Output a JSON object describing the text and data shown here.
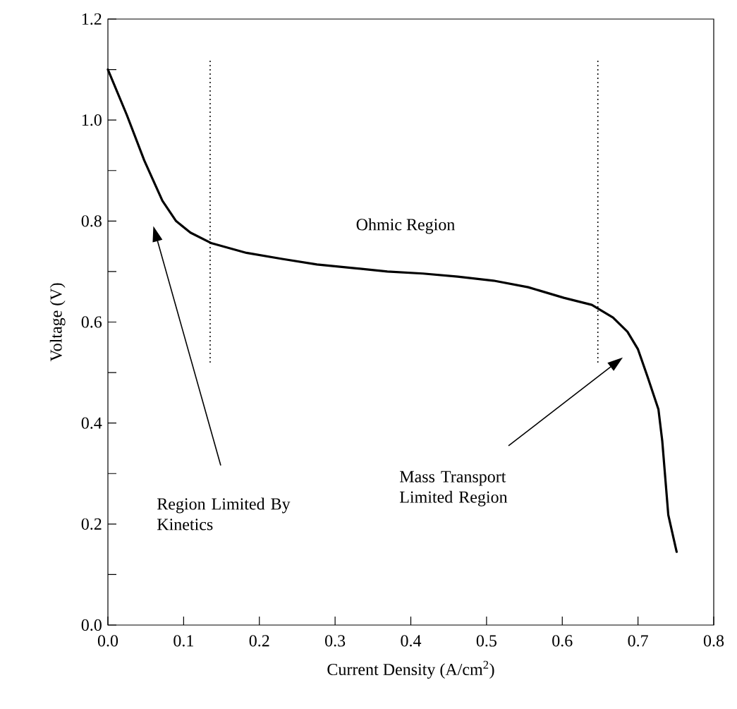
{
  "chart_data": {
    "type": "line",
    "xlabel": "Current Density (A/cm$^{2}$)",
    "ylabel": "Voltage (V)",
    "xlim": [
      0,
      0.8
    ],
    "ylim": [
      0,
      1.2
    ],
    "xticks": [
      {
        "value": 0,
        "label": "0.0"
      },
      {
        "value": 0.1,
        "label": "0.1"
      },
      {
        "value": 0.2,
        "label": "0.2"
      },
      {
        "value": 0.3,
        "label": "0.3"
      },
      {
        "value": 0.4,
        "label": "0.4"
      },
      {
        "value": 0.5,
        "label": "0.5"
      },
      {
        "value": 0.6,
        "label": "0.6"
      },
      {
        "value": 0.7,
        "label": "0.7"
      },
      {
        "value": 0.8,
        "label": "0.8"
      }
    ],
    "yticks": [
      {
        "value": 0,
        "label": "0.0"
      },
      {
        "value": 0.2,
        "label": "0.2"
      },
      {
        "value": 0.4,
        "label": "0.4"
      },
      {
        "value": 0.6,
        "label": "0.6"
      },
      {
        "value": 0.8,
        "label": "0.8"
      },
      {
        "value": 1.0,
        "label": "1.0"
      },
      {
        "value": 1.2,
        "label": "1.2"
      }
    ],
    "series": [
      {
        "color": "#000000",
        "x": [
          0,
          0.025,
          0.048,
          0.072,
          0.09,
          0.109,
          0.137,
          0.183,
          0.23,
          0.276,
          0.323,
          0.369,
          0.416,
          0.462,
          0.509,
          0.555,
          0.602,
          0.639,
          0.667,
          0.686,
          0.7,
          0.713,
          0.727,
          0.732,
          0.74,
          0.751
        ],
        "values": [
          1.1,
          1.01,
          0.92,
          0.84,
          0.8,
          0.777,
          0.756,
          0.737,
          0.725,
          0.714,
          0.707,
          0.7,
          0.696,
          0.69,
          0.682,
          0.669,
          0.648,
          0.634,
          0.609,
          0.581,
          0.546,
          0.49,
          0.427,
          0.365,
          0.218,
          0.145
        ]
      }
    ],
    "ref_lines": [
      {
        "axis": "x",
        "value": 0.135,
        "color": "#000000",
        "line_style": "dotted"
      },
      {
        "axis": "x",
        "value": 0.647,
        "color": "#000000",
        "line_style": "dotted"
      }
    ],
    "annotations": [
      "Ohmic Region",
      "Region Limited By Kinetics",
      "Mass Transport Limited Region"
    ]
  }
}
